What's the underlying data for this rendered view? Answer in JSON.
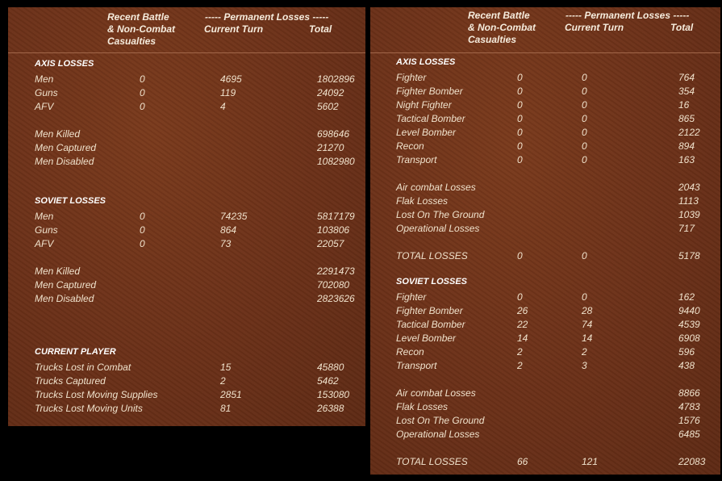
{
  "left": {
    "header": {
      "recent_l1": "Recent Battle",
      "recent_l2": "& Non-Combat",
      "recent_l3": "Casualties",
      "permanent": "----- Permanent Losses -----",
      "current_turn": "Current Turn",
      "total": "Total"
    },
    "axis_title": "AXIS LOSSES",
    "axis_rows": [
      {
        "label": "Men",
        "recent": "0",
        "turn": "4695",
        "total": "1802896"
      },
      {
        "label": "Guns",
        "recent": "0",
        "turn": "119",
        "total": "24092"
      },
      {
        "label": "AFV",
        "recent": "0",
        "turn": "4",
        "total": "5602"
      }
    ],
    "axis_detail": [
      {
        "label": "Men Killed",
        "total": "698646"
      },
      {
        "label": "Men Captured",
        "total": "21270"
      },
      {
        "label": "Men Disabled",
        "total": "1082980"
      }
    ],
    "soviet_title": "SOVIET LOSSES",
    "soviet_rows": [
      {
        "label": "Men",
        "recent": "0",
        "turn": "74235",
        "total": "5817179"
      },
      {
        "label": "Guns",
        "recent": "0",
        "turn": "864",
        "total": "103806"
      },
      {
        "label": "AFV",
        "recent": "0",
        "turn": "73",
        "total": "22057"
      }
    ],
    "soviet_detail": [
      {
        "label": "Men Killed",
        "total": "2291473"
      },
      {
        "label": "Men Captured",
        "total": "702080"
      },
      {
        "label": "Men Disabled",
        "total": "2823626"
      }
    ],
    "player_title": "CURRENT PLAYER",
    "player_rows": [
      {
        "label": "Trucks Lost in Combat",
        "turn": "15",
        "total": "45880"
      },
      {
        "label": "Trucks Captured",
        "turn": "2",
        "total": "5462"
      },
      {
        "label": "Trucks Lost Moving Supplies",
        "turn": "2851",
        "total": "153080"
      },
      {
        "label": "Trucks Lost Moving Units",
        "turn": "81",
        "total": "26388"
      }
    ]
  },
  "right": {
    "header": {
      "recent_l1": "Recent Battle",
      "recent_l2": "& Non-Combat",
      "recent_l3": "Casualties",
      "permanent": "----- Permanent Losses -----",
      "current_turn": "Current Turn",
      "total": "Total"
    },
    "axis_title": "AXIS LOSSES",
    "axis_rows": [
      {
        "label": "Fighter",
        "recent": "0",
        "turn": "0",
        "total": "764"
      },
      {
        "label": "Fighter Bomber",
        "recent": "0",
        "turn": "0",
        "total": "354"
      },
      {
        "label": "Night Fighter",
        "recent": "0",
        "turn": "0",
        "total": "16"
      },
      {
        "label": "Tactical Bomber",
        "recent": "0",
        "turn": "0",
        "total": "865"
      },
      {
        "label": "Level Bomber",
        "recent": "0",
        "turn": "0",
        "total": "2122"
      },
      {
        "label": "Recon",
        "recent": "0",
        "turn": "0",
        "total": "894"
      },
      {
        "label": "Transport",
        "recent": "0",
        "turn": "0",
        "total": "163"
      }
    ],
    "axis_detail": [
      {
        "label": "Air combat Losses",
        "total": "2043"
      },
      {
        "label": "Flak Losses",
        "total": "1113"
      },
      {
        "label": "Lost On The Ground",
        "total": "1039"
      },
      {
        "label": "Operational Losses",
        "total": "717"
      }
    ],
    "axis_total": {
      "label": "TOTAL LOSSES",
      "recent": "0",
      "turn": "0",
      "total": "5178"
    },
    "soviet_title": "SOVIET LOSSES",
    "soviet_rows": [
      {
        "label": "Fighter",
        "recent": "0",
        "turn": "0",
        "total": "162"
      },
      {
        "label": "Fighter Bomber",
        "recent": "26",
        "turn": "28",
        "total": "9440"
      },
      {
        "label": "Tactical Bomber",
        "recent": "22",
        "turn": "74",
        "total": "4539"
      },
      {
        "label": "Level Bomber",
        "recent": "14",
        "turn": "14",
        "total": "6908"
      },
      {
        "label": "Recon",
        "recent": "2",
        "turn": "2",
        "total": "596"
      },
      {
        "label": "Transport",
        "recent": "2",
        "turn": "3",
        "total": "438"
      }
    ],
    "soviet_detail": [
      {
        "label": "Air combat Losses",
        "total": "8866"
      },
      {
        "label": "Flak Losses",
        "total": "4783"
      },
      {
        "label": "Lost On The Ground",
        "total": "1576"
      },
      {
        "label": "Operational Losses",
        "total": "6485"
      }
    ],
    "soviet_total": {
      "label": "TOTAL LOSSES",
      "recent": "66",
      "turn": "121",
      "total": "22083"
    }
  }
}
